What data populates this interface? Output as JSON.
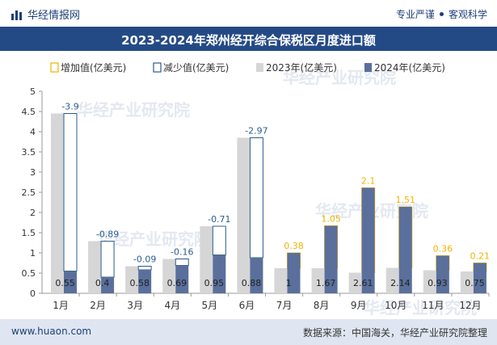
{
  "header": {
    "brand": "华经情报网",
    "tagline_left": "专业严谨",
    "tagline_right": "客观科学"
  },
  "watermark": "华经产业研究院",
  "footer": {
    "website": "www.huaon.com",
    "source": "数据来源：中国海关，华经产业研究院整理"
  },
  "colors": {
    "title_bg": "#244a86",
    "increase": "#f0b400",
    "decrease": "#2d5c8f",
    "bar_2023": "#d6d6d6",
    "bar_2024": "#5a6f9c",
    "footer_bg": "#dfe6f1"
  },
  "chart_data": {
    "type": "bar",
    "title": "2023-2024年郑州经开综合保税区月度进口额",
    "categories": [
      "1月",
      "2月",
      "3月",
      "4月",
      "5月",
      "6月",
      "7月",
      "8月",
      "9月",
      "10月",
      "11月",
      "12月"
    ],
    "series": [
      {
        "name": "2023年(亿美元)",
        "values": [
          4.45,
          1.29,
          0.67,
          0.85,
          1.66,
          3.85,
          0.62,
          0.62,
          0.51,
          0.63,
          0.57,
          0.54
        ]
      },
      {
        "name": "2024年(亿美元)",
        "values": [
          0.55,
          0.4,
          0.58,
          0.69,
          0.95,
          0.88,
          1.0,
          1.67,
          2.61,
          2.14,
          0.93,
          0.75
        ]
      }
    ],
    "change": {
      "increase_name": "增加值(亿美元)",
      "decrease_name": "减少值(亿美元)",
      "values": [
        -3.9,
        -0.89,
        -0.09,
        -0.16,
        -0.71,
        -2.97,
        0.38,
        1.05,
        2.1,
        1.51,
        0.36,
        0.21
      ],
      "labels": [
        "-3.9",
        "-0.89",
        "-0.09",
        "-0.16",
        "-0.71",
        "-2.97",
        "0.38",
        "1.05",
        "2.1",
        "1.51",
        "0.36",
        "0.21"
      ]
    },
    "value_labels_2024": [
      "0.55",
      "0.4",
      "0.58",
      "0.69",
      "0.95",
      "0.88",
      "1",
      "1.67",
      "2.61",
      "2.14",
      "0.93",
      "0.75"
    ],
    "ylim": [
      0,
      5
    ],
    "yticks": [
      "0",
      "0.5",
      "1",
      "1.5",
      "2",
      "2.5",
      "3",
      "3.5",
      "4",
      "4.5",
      "5"
    ],
    "legend_position": "top",
    "grid": false
  }
}
